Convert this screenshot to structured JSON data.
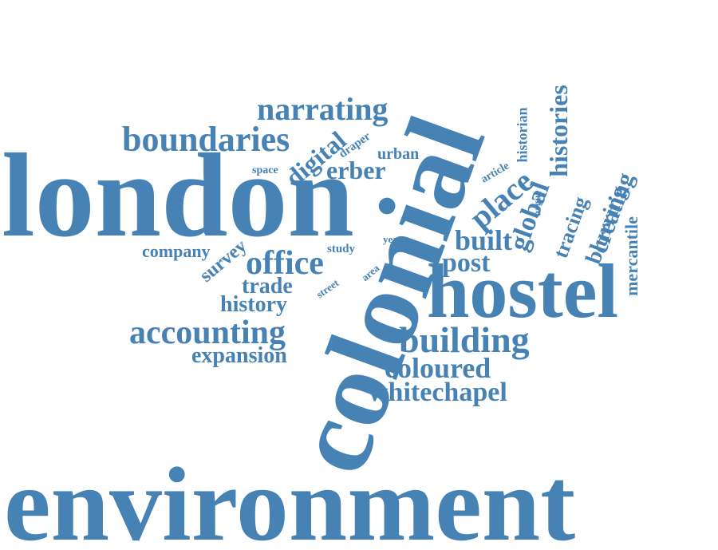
{
  "color": "#4682b4",
  "words": {
    "environment": "environment",
    "colonial": "colonial",
    "london": "london",
    "hostel": "hostel",
    "histories": "histories",
    "global": "global",
    "place": "place",
    "historian": "historian",
    "article": "article",
    "argue": "argue",
    "tracing": "tracing",
    "blurring": "blurring",
    "creating": "creating",
    "mercantile": "mercantile",
    "narrating": "narrating",
    "boundaries": "boundaries",
    "digital": "digital",
    "draper": "draper",
    "urban": "urban",
    "erber": "erber",
    "space": "space",
    "company": "company",
    "survey": "survey",
    "office": "office",
    "study": "study",
    "year": "year",
    "built": "built",
    "post": "post",
    "area": "area",
    "street": "street",
    "trade": "trade",
    "history": "history",
    "accounting": "accounting",
    "expansion": "expansion",
    "building": "building",
    "coloured": "coloured",
    "whitechapel": "whitechapel"
  }
}
